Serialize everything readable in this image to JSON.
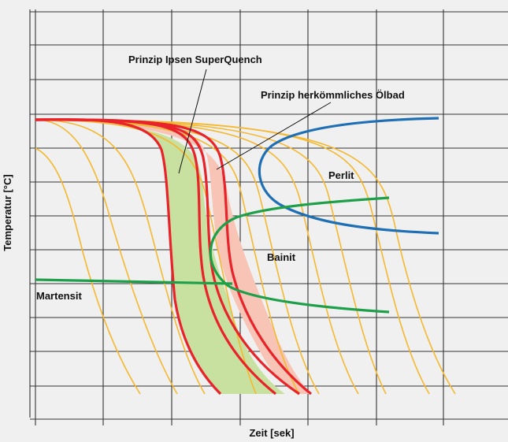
{
  "labels": {
    "superquench": "Prinzip Ipsen SuperQuench",
    "oelbad": "Prinzip herkömmliches Ölbad",
    "perlit": "Perlit",
    "bainit": "Bainit",
    "martensit": "Martensit",
    "x_axis": "Zeit [sek]",
    "y_axis": "Temperatur [°C]"
  },
  "colors": {
    "background": "#f0f0f0",
    "grid": "#333333",
    "cooling_curves": "#f5b82e",
    "band_curves": "#e8242a",
    "superquench_fill": "#c8e0a0",
    "oelbad_fill": "#f7c4b6",
    "perlit_curve": "#1f6fb5",
    "bainit_curve": "#1ea04a",
    "martensit_line": "#1ea04a"
  }
}
